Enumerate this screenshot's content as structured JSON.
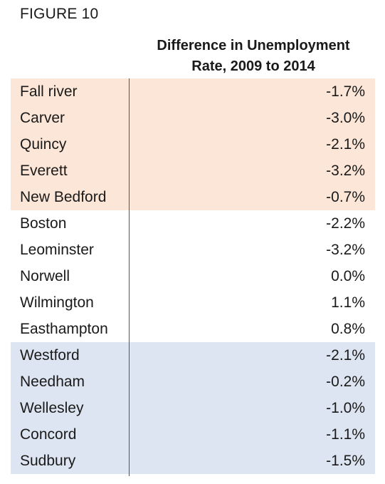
{
  "figure_label": "FIGURE 10",
  "header": {
    "line1": "Difference in Unemployment",
    "line2": "Rate, 2009 to 2014"
  },
  "colors": {
    "group_1": "#fce6d7",
    "group_2": "#ffffff",
    "group_3": "#dce5f1"
  },
  "rows": [
    {
      "name": "Fall river",
      "value": "-1.7%",
      "group": 0
    },
    {
      "name": "Carver",
      "value": "-3.0%",
      "group": 0
    },
    {
      "name": "Quincy",
      "value": "-2.1%",
      "group": 0
    },
    {
      "name": "Everett",
      "value": "-3.2%",
      "group": 0
    },
    {
      "name": "New Bedford",
      "value": "-0.7%",
      "group": 0
    },
    {
      "name": "Boston",
      "value": "-2.2%",
      "group": 1
    },
    {
      "name": "Leominster",
      "value": "-3.2%",
      "group": 1
    },
    {
      "name": "Norwell",
      "value": "0.0%",
      "group": 1
    },
    {
      "name": "Wilmington",
      "value": "1.1%",
      "group": 1
    },
    {
      "name": "Easthampton",
      "value": "0.8%",
      "group": 1
    },
    {
      "name": "Westford",
      "value": "-2.1%",
      "group": 2
    },
    {
      "name": "Needham",
      "value": "-0.2%",
      "group": 2
    },
    {
      "name": "Wellesley",
      "value": "-1.0%",
      "group": 2
    },
    {
      "name": "Concord",
      "value": "-1.1%",
      "group": 2
    },
    {
      "name": "Sudbury",
      "value": "-1.5%",
      "group": 2
    }
  ]
}
